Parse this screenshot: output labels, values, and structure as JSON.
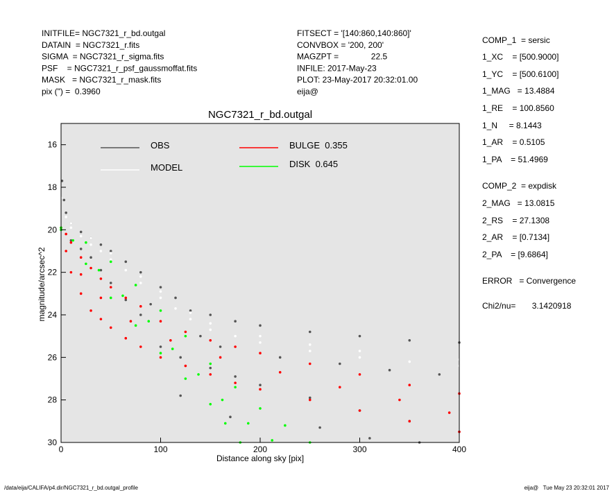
{
  "chart_data": {
    "type": "scatter",
    "title": "NGC7321_r_bd.outgal",
    "xlabel": "Distance along sky [pix]",
    "ylabel": "magnitude/arcsec^2",
    "xlim": [
      0,
      400
    ],
    "xticks": [
      0,
      100,
      200,
      300,
      400
    ],
    "ylim": [
      15,
      30
    ],
    "yticks": [
      16,
      18,
      20,
      22,
      24,
      26,
      28,
      30
    ],
    "y_inverted": true,
    "background": "#e5e5e5",
    "series": [
      {
        "name": "OBS",
        "color": "#555555",
        "x": [
          1,
          3,
          5,
          10,
          20,
          30,
          40,
          50,
          65,
          80,
          100,
          115,
          130,
          150,
          175,
          200,
          250,
          300,
          350,
          400,
          10,
          20,
          30,
          40,
          50,
          65,
          80,
          100,
          120,
          150,
          175,
          200,
          250,
          300,
          350,
          400,
          90,
          140,
          160,
          220,
          280,
          330,
          380,
          120,
          170,
          260,
          310,
          360
        ],
        "values": [
          17.7,
          18.6,
          19.2,
          19.7,
          20.1,
          20.4,
          20.7,
          21.0,
          21.5,
          22.0,
          22.7,
          23.2,
          23.8,
          24.0,
          24.3,
          24.5,
          24.8,
          25.0,
          25.2,
          25.3,
          20.5,
          20.9,
          21.3,
          21.9,
          22.5,
          23.3,
          24.0,
          25.5,
          26.0,
          26.5,
          26.9,
          27.3,
          27.9,
          28.5,
          29.0,
          29.5,
          23.5,
          25.0,
          25.5,
          26.0,
          26.3,
          26.6,
          26.8,
          27.8,
          28.8,
          29.3,
          29.8,
          30.0
        ]
      },
      {
        "name": "MODEL",
        "color": "#ffffff",
        "x": [
          0,
          5,
          10,
          20,
          30,
          40,
          50,
          65,
          80,
          100,
          115,
          130,
          150,
          175,
          200,
          250,
          300,
          350,
          400,
          10,
          30,
          50,
          80,
          100,
          130,
          150,
          200,
          250,
          300,
          400
        ],
        "values": [
          18.5,
          19.4,
          19.9,
          20.3,
          20.7,
          21.0,
          21.4,
          21.9,
          22.5,
          23.2,
          23.7,
          24.2,
          24.7,
          25.0,
          25.3,
          25.7,
          26.0,
          26.2,
          26.4,
          19.7,
          20.4,
          21.1,
          22.2,
          22.9,
          23.9,
          24.4,
          25.0,
          25.4,
          25.7,
          26.1
        ]
      },
      {
        "name": "BULGE  0.355",
        "color": "#ff0000",
        "x": [
          0,
          5,
          10,
          20,
          30,
          40,
          50,
          65,
          80,
          100,
          125,
          150,
          175,
          200,
          250,
          300,
          350,
          400,
          5,
          10,
          20,
          30,
          40,
          50,
          65,
          80,
          100,
          125,
          150,
          175,
          200,
          250,
          300,
          350,
          400,
          20,
          40,
          70,
          110,
          160,
          220,
          280,
          340,
          390
        ],
        "values": [
          19.9,
          20.2,
          20.6,
          21.3,
          21.8,
          22.3,
          22.7,
          23.2,
          23.6,
          24.3,
          24.8,
          25.2,
          25.5,
          25.8,
          26.3,
          26.8,
          27.3,
          27.7,
          21.0,
          22.0,
          23.0,
          23.8,
          24.2,
          24.6,
          25.1,
          25.5,
          26.0,
          26.4,
          26.8,
          27.2,
          27.5,
          28.0,
          28.5,
          29.0,
          29.5,
          22.1,
          23.2,
          24.3,
          25.2,
          26.0,
          26.7,
          27.4,
          28.0,
          28.6
        ]
      },
      {
        "name": "DISK  0.645",
        "color": "#00ff00",
        "x": [
          0,
          25,
          50,
          75,
          100,
          125,
          150,
          175,
          200,
          225,
          250,
          0,
          25,
          50,
          75,
          100,
          125,
          150,
          165,
          180,
          12,
          38,
          62,
          88,
          112,
          138,
          162,
          188,
          212
        ],
        "values": [
          19.9,
          20.6,
          21.5,
          22.6,
          23.8,
          25.0,
          26.3,
          27.4,
          28.4,
          29.2,
          30.0,
          20.0,
          21.6,
          23.2,
          24.5,
          25.8,
          27.0,
          28.2,
          29.1,
          30.0,
          20.5,
          21.9,
          23.1,
          24.3,
          25.6,
          26.8,
          28.0,
          29.1,
          29.9
        ]
      }
    ]
  },
  "info_left": [
    "INITFILE= NGC7321_r_bd.outgal",
    "DATAIN  = NGC7321_r.fits",
    "SIGMA  = NGC7321_r_sigma.fits",
    "PSF    = NGC7321_r_psf_gaussmoffat.fits",
    "MASK   = NGC7321_r_mask.fits",
    "pix (\") =  0.3960"
  ],
  "info_middle": [
    "FITSECT = '[140:860,140:860]'",
    "CONVBOX = '200, 200'",
    "MAGZPT =              22.5",
    "INFILE: 2017-May-23",
    "PLOT: 23-May-2017 20:32:01.00",
    "eija@"
  ],
  "params": [
    "COMP_1  = sersic",
    "1_XC    = [500.9000]",
    "1_YC    = [500.6100]",
    "1_MAG   = 13.4884",
    "1_RE    = 100.8560",
    "1_N     = 8.1443",
    "1_AR    = 0.5105",
    "1_PA    = 51.4969",
    "COMP_2  = expdisk",
    "2_MAG   = 13.0815",
    "2_RS    = 27.1308",
    "2_AR    = [0.7134]",
    "2_PA    = [9.6864]",
    "ERROR   = Convergence",
    "Chi2/nu=       3.1420918"
  ],
  "footer_left": "/data/eija/CALIFA/p4.dir/NGC7321_r_bd.outgal_profile",
  "footer_right": "eija@   Tue May 23 20:32:01 2017"
}
